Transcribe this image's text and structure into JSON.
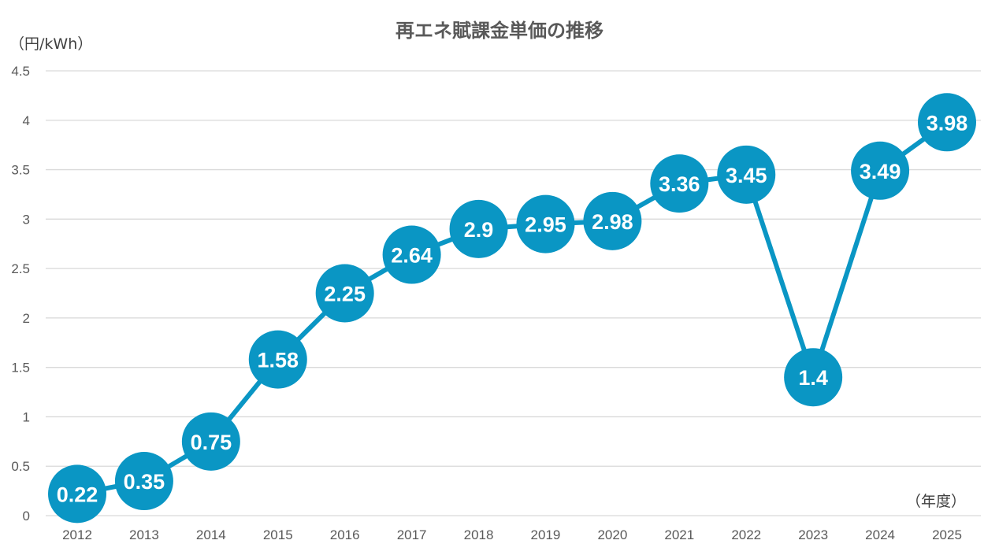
{
  "chart_data": {
    "type": "line",
    "title": "再エネ賦課金単価の推移",
    "ylabel": "（円/kWh）",
    "xlabel": "（年度）",
    "categories": [
      "2012",
      "2013",
      "2014",
      "2015",
      "2016",
      "2017",
      "2018",
      "2019",
      "2020",
      "2021",
      "2022",
      "2023",
      "2024",
      "2025"
    ],
    "values": [
      0.22,
      0.35,
      0.75,
      1.58,
      2.25,
      2.64,
      2.9,
      2.95,
      2.98,
      3.36,
      3.45,
      1.4,
      3.49,
      3.98
    ],
    "ylim": [
      0,
      4.5
    ],
    "yticks": [
      "0",
      "0.5",
      "1",
      "1.5",
      "2",
      "2.5",
      "3",
      "3.5",
      "4",
      "4.5"
    ],
    "grid": true,
    "data_labels": true,
    "color": "#0a96c4"
  }
}
